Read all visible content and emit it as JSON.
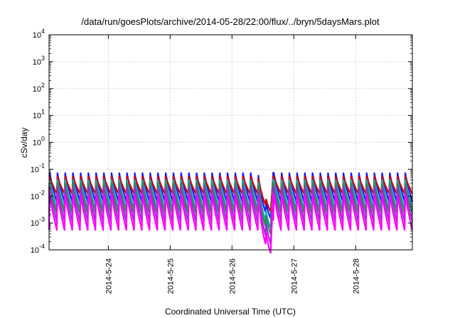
{
  "chart_data": {
    "type": "line",
    "title": "/data/run/goesPlots/archive/2014-05-28/22:00/flux/../bryn/5daysMars.plot",
    "xlabel": "Coordinated Universal Time (UTC)",
    "ylabel": "cSv/day",
    "yscale": "log",
    "ylim": [
      0.0001,
      10000
    ],
    "xlim": [
      "2014-05-23 01:00",
      "2014-05-28 22:00"
    ],
    "grid": true,
    "legend": "none",
    "y_ticks": [
      {
        "exp": "-4"
      },
      {
        "exp": "-3"
      },
      {
        "exp": "-2"
      },
      {
        "exp": "-1"
      },
      {
        "exp": "0"
      },
      {
        "exp": "1"
      },
      {
        "exp": "2"
      },
      {
        "exp": "3"
      },
      {
        "exp": "4"
      }
    ],
    "y_tick_base": "10",
    "x_ticks": [
      "2014-5-24",
      "2014-5-25",
      "2014-5-26",
      "2014-5-27",
      "2014-5-28"
    ],
    "cycle_hours": 3,
    "dropout": {
      "start": "2014-05-26 10:00",
      "min": "2014-05-26 15:00",
      "end": "2014-05-26 16:00"
    },
    "series": [
      {
        "color": "#1a1aff",
        "peak": 0.075,
        "trough": 0.006
      },
      {
        "color": "#d80000",
        "peak": 0.055,
        "trough": 0.012
      },
      {
        "color": "#00b0b0",
        "peak": 0.042,
        "trough": 0.0032
      },
      {
        "color": "#2e8b57",
        "peak": 0.03,
        "trough": 0.0022
      },
      {
        "color": "#9b30d0",
        "peak": 0.022,
        "trough": 0.0011
      },
      {
        "color": "#ff00ff",
        "peak": 0.012,
        "trough": 0.00055
      }
    ]
  }
}
